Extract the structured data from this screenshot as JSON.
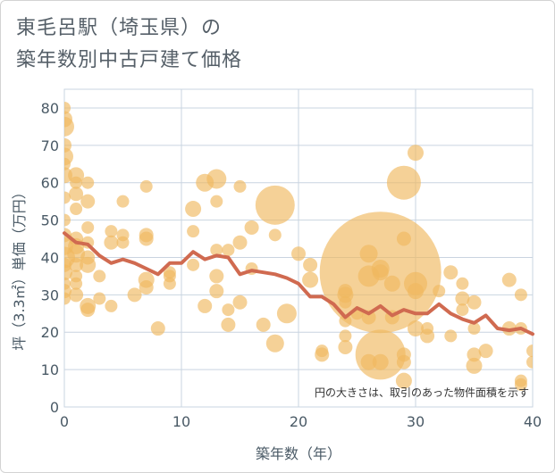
{
  "title": {
    "line1": "東毛呂駅（埼玉県）の",
    "line2": "築年数別中古戸建て価格"
  },
  "chart_data": {
    "type": "scatter",
    "title": "東毛呂駅（埼玉県）の 築年数別中古戸建て価格",
    "xlabel": "築年数（年）",
    "ylabel": "坪（3.3㎡）単価（万円）",
    "xlim": [
      0,
      40
    ],
    "ylim": [
      0,
      85
    ],
    "xticks": [
      0,
      10,
      20,
      30,
      40
    ],
    "yticks": [
      0,
      10,
      20,
      30,
      40,
      50,
      60,
      70,
      80
    ],
    "grid": true,
    "annotation": "円の大きさは、取引のあった物件面積を示す",
    "colors": {
      "bubble": "#f0b860",
      "line": "#d06a50",
      "grid": "#c9d4e0"
    },
    "series": [
      {
        "name": "trend",
        "type": "line",
        "x": [
          0,
          1,
          2,
          3,
          4,
          5,
          6,
          7,
          8,
          9,
          10,
          11,
          12,
          13,
          14,
          15,
          16,
          17,
          18,
          19,
          20,
          21,
          22,
          23,
          24,
          25,
          26,
          27,
          28,
          29,
          30,
          31,
          32,
          33,
          34,
          35,
          36,
          37,
          38,
          39,
          40
        ],
        "y": [
          46.5,
          44,
          43.5,
          40.5,
          38.5,
          39.5,
          38.5,
          37,
          35.5,
          38.5,
          38.5,
          41.5,
          39.5,
          40.5,
          40,
          35.5,
          36.5,
          36,
          35.5,
          34.5,
          33,
          29.5,
          29.5,
          27.5,
          24,
          26.5,
          25,
          27,
          24.5,
          26,
          25,
          25,
          27.5,
          25,
          23.5,
          22.5,
          24.5,
          21,
          20.5,
          21,
          19.5
        ]
      },
      {
        "name": "transactions",
        "type": "bubble",
        "points": [
          {
            "x": 0,
            "y": 80,
            "s": 7
          },
          {
            "x": 0,
            "y": 77,
            "s": 9
          },
          {
            "x": 0,
            "y": 75,
            "s": 11
          },
          {
            "x": 0,
            "y": 70,
            "s": 8
          },
          {
            "x": 0,
            "y": 67,
            "s": 10
          },
          {
            "x": 0,
            "y": 65,
            "s": 7
          },
          {
            "x": 0,
            "y": 62,
            "s": 9
          },
          {
            "x": 0,
            "y": 56,
            "s": 7
          },
          {
            "x": 0,
            "y": 50,
            "s": 7
          },
          {
            "x": 0,
            "y": 46,
            "s": 8
          },
          {
            "x": 0,
            "y": 43,
            "s": 10
          },
          {
            "x": 0,
            "y": 40,
            "s": 12
          },
          {
            "x": 0,
            "y": 38,
            "s": 8
          },
          {
            "x": 0,
            "y": 36,
            "s": 9
          },
          {
            "x": 0,
            "y": 33,
            "s": 7
          },
          {
            "x": 0,
            "y": 31,
            "s": 8
          },
          {
            "x": 0,
            "y": 29,
            "s": 7
          },
          {
            "x": 1,
            "y": 62,
            "s": 9
          },
          {
            "x": 1,
            "y": 60,
            "s": 7
          },
          {
            "x": 1,
            "y": 57,
            "s": 8
          },
          {
            "x": 1,
            "y": 53,
            "s": 7
          },
          {
            "x": 1,
            "y": 45,
            "s": 8
          },
          {
            "x": 1,
            "y": 43,
            "s": 9
          },
          {
            "x": 1,
            "y": 41,
            "s": 10
          },
          {
            "x": 1,
            "y": 38,
            "s": 8
          },
          {
            "x": 1,
            "y": 35,
            "s": 7
          },
          {
            "x": 1,
            "y": 33,
            "s": 7
          },
          {
            "x": 1,
            "y": 30,
            "s": 8
          },
          {
            "x": 2,
            "y": 60,
            "s": 7
          },
          {
            "x": 2,
            "y": 55,
            "s": 8
          },
          {
            "x": 2,
            "y": 48,
            "s": 7
          },
          {
            "x": 2,
            "y": 44,
            "s": 7
          },
          {
            "x": 2,
            "y": 40,
            "s": 8
          },
          {
            "x": 2,
            "y": 38,
            "s": 9
          },
          {
            "x": 2,
            "y": 27,
            "s": 9
          },
          {
            "x": 2,
            "y": 26,
            "s": 8
          },
          {
            "x": 3,
            "y": 35,
            "s": 7
          },
          {
            "x": 3,
            "y": 29,
            "s": 7
          },
          {
            "x": 4,
            "y": 47,
            "s": 7
          },
          {
            "x": 4,
            "y": 44,
            "s": 8
          },
          {
            "x": 4,
            "y": 27,
            "s": 7
          },
          {
            "x": 5,
            "y": 55,
            "s": 7
          },
          {
            "x": 5,
            "y": 46,
            "s": 7
          },
          {
            "x": 5,
            "y": 44,
            "s": 7
          },
          {
            "x": 6,
            "y": 30,
            "s": 8
          },
          {
            "x": 7,
            "y": 59,
            "s": 7
          },
          {
            "x": 7,
            "y": 46,
            "s": 8
          },
          {
            "x": 7,
            "y": 45,
            "s": 8
          },
          {
            "x": 7,
            "y": 34,
            "s": 9
          },
          {
            "x": 7,
            "y": 32,
            "s": 8
          },
          {
            "x": 8,
            "y": 21,
            "s": 8
          },
          {
            "x": 9,
            "y": 36,
            "s": 7
          },
          {
            "x": 9,
            "y": 35,
            "s": 7
          },
          {
            "x": 9,
            "y": 33,
            "s": 7
          },
          {
            "x": 11,
            "y": 53,
            "s": 9
          },
          {
            "x": 11,
            "y": 47,
            "s": 7
          },
          {
            "x": 11,
            "y": 38,
            "s": 7
          },
          {
            "x": 12,
            "y": 60,
            "s": 10
          },
          {
            "x": 12,
            "y": 27,
            "s": 8
          },
          {
            "x": 13,
            "y": 61,
            "s": 11
          },
          {
            "x": 13,
            "y": 55,
            "s": 7
          },
          {
            "x": 13,
            "y": 42,
            "s": 7
          },
          {
            "x": 13,
            "y": 35,
            "s": 8
          },
          {
            "x": 13,
            "y": 31,
            "s": 8
          },
          {
            "x": 14,
            "y": 42,
            "s": 7
          },
          {
            "x": 14,
            "y": 26,
            "s": 7
          },
          {
            "x": 14,
            "y": 22,
            "s": 8
          },
          {
            "x": 15,
            "y": 59,
            "s": 7
          },
          {
            "x": 15,
            "y": 44,
            "s": 8
          },
          {
            "x": 15,
            "y": 28,
            "s": 8
          },
          {
            "x": 16,
            "y": 48,
            "s": 8
          },
          {
            "x": 16,
            "y": 37,
            "s": 7
          },
          {
            "x": 17,
            "y": 22,
            "s": 8
          },
          {
            "x": 18,
            "y": 54,
            "s": 22
          },
          {
            "x": 18,
            "y": 46,
            "s": 7
          },
          {
            "x": 18,
            "y": 17,
            "s": 10
          },
          {
            "x": 19,
            "y": 25,
            "s": 11
          },
          {
            "x": 20,
            "y": 41,
            "s": 8
          },
          {
            "x": 21,
            "y": 38,
            "s": 8
          },
          {
            "x": 21,
            "y": 34,
            "s": 9
          },
          {
            "x": 22,
            "y": 15,
            "s": 7
          },
          {
            "x": 22,
            "y": 14,
            "s": 8
          },
          {
            "x": 24,
            "y": 31,
            "s": 8
          },
          {
            "x": 24,
            "y": 30,
            "s": 9
          },
          {
            "x": 24,
            "y": 28,
            "s": 7
          },
          {
            "x": 24,
            "y": 23,
            "s": 7
          },
          {
            "x": 24,
            "y": 19,
            "s": 7
          },
          {
            "x": 24,
            "y": 16,
            "s": 8
          },
          {
            "x": 25,
            "y": 25,
            "s": 7
          },
          {
            "x": 26,
            "y": 41,
            "s": 10
          },
          {
            "x": 26,
            "y": 35,
            "s": 12
          },
          {
            "x": 26,
            "y": 24,
            "s": 8
          },
          {
            "x": 26,
            "y": 12,
            "s": 9
          },
          {
            "x": 27,
            "y": 36,
            "s": 68
          },
          {
            "x": 27,
            "y": 37,
            "s": 10
          },
          {
            "x": 27,
            "y": 36,
            "s": 9
          },
          {
            "x": 27,
            "y": 14,
            "s": 28
          },
          {
            "x": 27,
            "y": 12,
            "s": 9
          },
          {
            "x": 28,
            "y": 33,
            "s": 9
          },
          {
            "x": 28,
            "y": 24,
            "s": 8
          },
          {
            "x": 29,
            "y": 60,
            "s": 19
          },
          {
            "x": 29,
            "y": 45,
            "s": 8
          },
          {
            "x": 29,
            "y": 14,
            "s": 8
          },
          {
            "x": 29,
            "y": 12,
            "s": 8
          },
          {
            "x": 29,
            "y": 7,
            "s": 9
          },
          {
            "x": 30,
            "y": 68,
            "s": 9
          },
          {
            "x": 30,
            "y": 33,
            "s": 13
          },
          {
            "x": 30,
            "y": 31,
            "s": 9
          },
          {
            "x": 30,
            "y": 21,
            "s": 9
          },
          {
            "x": 31,
            "y": 21,
            "s": 7
          },
          {
            "x": 31,
            "y": 19,
            "s": 8
          },
          {
            "x": 32,
            "y": 31,
            "s": 7
          },
          {
            "x": 33,
            "y": 36,
            "s": 8
          },
          {
            "x": 33,
            "y": 19,
            "s": 7
          },
          {
            "x": 34,
            "y": 33,
            "s": 7
          },
          {
            "x": 34,
            "y": 29,
            "s": 8
          },
          {
            "x": 34,
            "y": 26,
            "s": 7
          },
          {
            "x": 35,
            "y": 28,
            "s": 8
          },
          {
            "x": 35,
            "y": 21,
            "s": 7
          },
          {
            "x": 35,
            "y": 14,
            "s": 8
          },
          {
            "x": 35,
            "y": 11,
            "s": 9
          },
          {
            "x": 36,
            "y": 15,
            "s": 8
          },
          {
            "x": 38,
            "y": 34,
            "s": 8
          },
          {
            "x": 38,
            "y": 21,
            "s": 8
          },
          {
            "x": 39,
            "y": 30,
            "s": 7
          },
          {
            "x": 39,
            "y": 21,
            "s": 7
          },
          {
            "x": 39,
            "y": 7,
            "s": 7
          },
          {
            "x": 39,
            "y": 6,
            "s": 7
          },
          {
            "x": 40,
            "y": 15,
            "s": 7
          },
          {
            "x": 40,
            "y": 12,
            "s": 7
          }
        ]
      }
    ]
  }
}
